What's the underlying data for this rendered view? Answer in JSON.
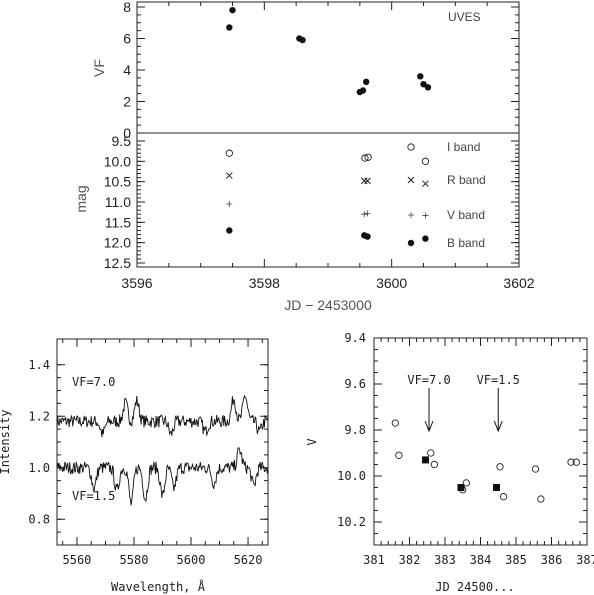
{
  "chart_data": [
    {
      "type": "scatter",
      "panel": "top-upper",
      "ylabel": "VF",
      "annotation": "UVES",
      "xlim": [
        3596,
        3602
      ],
      "ylim": [
        0,
        8
      ],
      "y_ticks": [
        "0",
        "2",
        "4",
        "6",
        "8"
      ],
      "series": [
        {
          "marker": "filled-circle",
          "x": [
            3597.45,
            3597.5,
            3598.55,
            3598.6,
            3599.5,
            3599.55,
            3599.6,
            3600.45,
            3600.5,
            3600.57
          ],
          "y": [
            6.7,
            7.8,
            6.0,
            5.9,
            2.6,
            2.7,
            3.25,
            3.6,
            3.1,
            2.9
          ]
        }
      ]
    },
    {
      "type": "scatter",
      "panel": "top-lower",
      "ylabel": "mag",
      "xlabel": "JD − 2453000",
      "xlim": [
        3596,
        3602
      ],
      "ylim": [
        12.6,
        9.5
      ],
      "x_ticks": [
        "3596",
        "3598",
        "3600",
        "3602"
      ],
      "y_ticks": [
        "9.5",
        "10.0",
        "10.5",
        "11.0",
        "11.5",
        "12.0",
        "12.5"
      ],
      "series": [
        {
          "name": "I band",
          "marker": "open-circle",
          "x": [
            3597.45,
            3599.58,
            3599.63,
            3600.53
          ],
          "y": [
            9.8,
            9.92,
            9.9,
            10.0
          ]
        },
        {
          "name": "R band",
          "marker": "cross",
          "x": [
            3597.45,
            3599.57,
            3599.62,
            3600.53
          ],
          "y": [
            10.35,
            10.48,
            10.48,
            10.55
          ]
        },
        {
          "name": "V band",
          "marker": "plus",
          "x": [
            3597.45,
            3599.57,
            3599.62,
            3600.53
          ],
          "y": [
            11.05,
            11.3,
            11.28,
            11.33
          ]
        },
        {
          "name": "B band",
          "marker": "filled-circle",
          "x": [
            3597.45,
            3599.57,
            3599.62,
            3600.53
          ],
          "y": [
            11.7,
            11.82,
            11.85,
            11.9
          ]
        }
      ]
    },
    {
      "type": "line",
      "panel": "bottom-left",
      "xlabel": "Wavelength, Å",
      "ylabel": "Intensity",
      "xlim": [
        5553,
        5627
      ],
      "ylim": [
        0.7,
        1.5
      ],
      "x_ticks": [
        "5560",
        "5580",
        "5600",
        "5620"
      ],
      "y_ticks": [
        "0.8",
        "1.0",
        "1.2",
        "1.4"
      ],
      "series": [
        {
          "name": "VF=7.0",
          "baseline": 1.18,
          "x": [
            5553,
            5627
          ]
        },
        {
          "name": "VF=1.5",
          "baseline": 1.0,
          "x": [
            5553,
            5627
          ]
        }
      ]
    },
    {
      "type": "scatter",
      "panel": "bottom-right",
      "xlabel": "JD 24500...",
      "ylabel": "V",
      "xlim": [
        381,
        387
      ],
      "ylim": [
        10.3,
        9.4
      ],
      "x_ticks": [
        "381",
        "382",
        "383",
        "384",
        "385",
        "386",
        "387"
      ],
      "y_ticks": [
        "9.4",
        "9.6",
        "9.8",
        "10.0",
        "10.2"
      ],
      "annotations": [
        {
          "text": "VF=7.0",
          "x": 382.55,
          "y": 9.92
        },
        {
          "text": "VF=1.5",
          "x": 384.5,
          "y": 9.92
        }
      ],
      "series": [
        {
          "marker": "open-circle",
          "x": [
            381.6,
            381.7,
            382.6,
            382.7,
            383.5,
            383.6,
            384.55,
            384.65,
            385.55,
            385.7,
            386.55,
            386.7
          ],
          "y": [
            9.77,
            9.91,
            9.9,
            9.95,
            10.06,
            10.03,
            9.96,
            10.09,
            9.97,
            10.1,
            9.94,
            9.94
          ]
        },
        {
          "marker": "filled-square",
          "x": [
            382.45,
            383.45,
            384.45
          ],
          "y": [
            9.93,
            10.05,
            10.05
          ]
        }
      ]
    }
  ]
}
